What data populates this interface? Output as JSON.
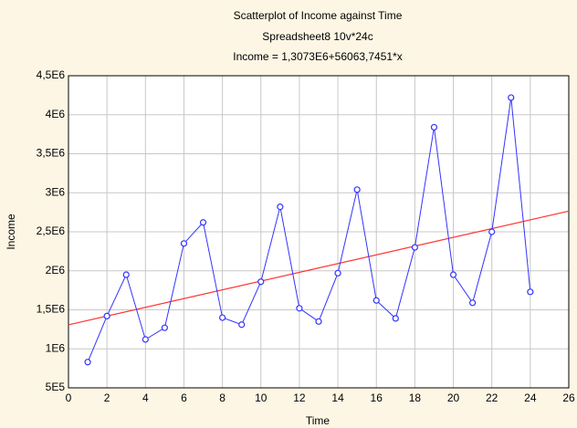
{
  "chart_data": {
    "type": "line",
    "title": "Scatterplot of Income against Time",
    "subtitle": "Spreadsheet8 10v*24c",
    "equation": "Income = 1,3073E6+56063,7451*x",
    "x_label": "Time",
    "y_label": "Income",
    "x": [
      1,
      2,
      3,
      4,
      5,
      6,
      7,
      8,
      9,
      10,
      11,
      12,
      13,
      14,
      15,
      16,
      17,
      18,
      19,
      20,
      21,
      22,
      23,
      24
    ],
    "series": [
      {
        "color": "#3333ff",
        "values": [
          830000,
          1420000,
          1950000,
          1120000,
          1270000,
          2350000,
          2620000,
          1400000,
          1310000,
          1860000,
          2820000,
          1520000,
          1350000,
          1970000,
          3040000,
          1620000,
          1390000,
          2300000,
          3840000,
          1950000,
          1590000,
          2500000,
          4220000,
          1730000
        ]
      }
    ],
    "fit_line": {
      "color": "#ff3333",
      "x": [
        0,
        26
      ],
      "values": [
        1307300,
        2764957
      ]
    },
    "xlim": [
      0,
      26
    ],
    "xticks": [
      0,
      2,
      4,
      6,
      8,
      10,
      12,
      14,
      16,
      18,
      20,
      22,
      24,
      26
    ],
    "ylim": [
      500000,
      4500000
    ],
    "yticks": [
      {
        "value": 500000,
        "label": "5E5"
      },
      {
        "value": 1000000,
        "label": "1E6"
      },
      {
        "value": 1500000,
        "label": "1,5E6"
      },
      {
        "value": 2000000,
        "label": "2E6"
      },
      {
        "value": 2500000,
        "label": "2,5E6"
      },
      {
        "value": 3000000,
        "label": "3E6"
      },
      {
        "value": 3500000,
        "label": "3,5E6"
      },
      {
        "value": 4000000,
        "label": "4E6"
      },
      {
        "value": 4500000,
        "label": "4,5E6"
      }
    ],
    "grid": true
  }
}
